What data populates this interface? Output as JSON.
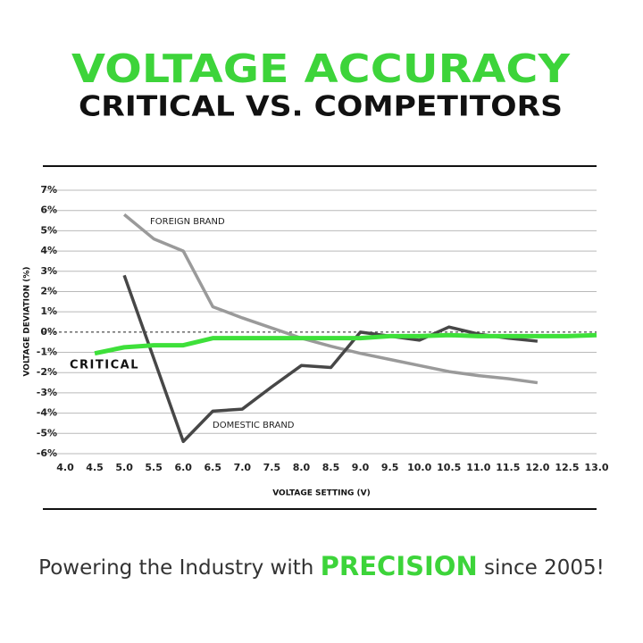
{
  "chart_data": {
    "type": "line",
    "title": "VOLTAGE ACCURACY",
    "subtitle": "CRITICAL VS. COMPETITORS",
    "x_label": "VOLTAGE SETTING (V)",
    "y_label": "VOLTAGE DEVIATION (%)",
    "x": [
      4.5,
      5.0,
      5.5,
      6.0,
      6.5,
      7.0,
      7.5,
      8.0,
      8.5,
      9.0,
      9.5,
      10.0,
      10.5,
      11.0,
      11.5,
      12.0,
      12.5,
      13.0
    ],
    "series": [
      {
        "name": "FOREIGN BRAND",
        "color": "#9a9a9a",
        "values": [
          null,
          5.8,
          4.6,
          4.0,
          1.25,
          0.7,
          0.2,
          -0.3,
          -0.7,
          -1.05,
          -1.35,
          -1.65,
          -1.95,
          -2.15,
          -2.3,
          -2.5,
          null,
          null
        ]
      },
      {
        "name": "DOMESTIC BRAND",
        "color": "#474747",
        "values": [
          null,
          2.8,
          -1.3,
          -5.4,
          -3.9,
          -3.8,
          -2.7,
          -1.65,
          -1.75,
          0,
          -0.2,
          -0.4,
          0.25,
          -0.1,
          -0.3,
          -0.45,
          null,
          null
        ]
      },
      {
        "name": "CRITICAL",
        "color": "#3ee03a",
        "values": [
          -1.05,
          -0.75,
          -0.65,
          -0.65,
          -0.3,
          -0.3,
          -0.3,
          -0.3,
          -0.3,
          -0.3,
          -0.2,
          -0.2,
          -0.15,
          -0.2,
          -0.2,
          -0.2,
          -0.2,
          -0.15
        ]
      }
    ],
    "xlim": [
      4.0,
      13.0
    ],
    "xticks": [
      {
        "value": 4.0,
        "label": "4.0"
      },
      4.5,
      {
        "value": 5.0,
        "label": "5.0"
      },
      5.5,
      {
        "value": 6.0,
        "label": "6.0"
      },
      6.5,
      {
        "value": 7.0,
        "label": "7.0"
      },
      7.5,
      {
        "value": 8.0,
        "label": "8.0"
      },
      8.5,
      {
        "value": 9.0,
        "label": "9.0"
      },
      9.5,
      {
        "value": 10.0,
        "label": "10.0"
      },
      10.5,
      {
        "value": 11.0,
        "label": "11.0"
      },
      11.5,
      {
        "value": 12.0,
        "label": "12.0"
      },
      12.5,
      {
        "value": 13.0,
        "label": "13.0"
      }
    ],
    "ylim": [
      -6,
      7
    ],
    "yticks": [
      {
        "value": -6,
        "label": "-6%"
      },
      {
        "value": -5,
        "label": "-5%"
      },
      {
        "value": -4,
        "label": "-4%"
      },
      {
        "value": -3,
        "label": "-3%"
      },
      {
        "value": -2,
        "label": "-2%"
      },
      {
        "value": -1,
        "label": "-1%"
      },
      {
        "value": 0,
        "label": "0%"
      },
      {
        "value": 1,
        "label": "1%"
      },
      {
        "value": 2,
        "label": "2%"
      },
      {
        "value": 3,
        "label": "3%"
      },
      {
        "value": 4,
        "label": "4%"
      },
      {
        "value": 5,
        "label": "5%"
      },
      {
        "value": 6,
        "label": "6%"
      },
      {
        "value": 7,
        "label": "7%"
      }
    ],
    "grid": true
  },
  "footer": {
    "before": "Powering the Industry with",
    "highlight": "PRECISION",
    "after": "since 2005!"
  }
}
